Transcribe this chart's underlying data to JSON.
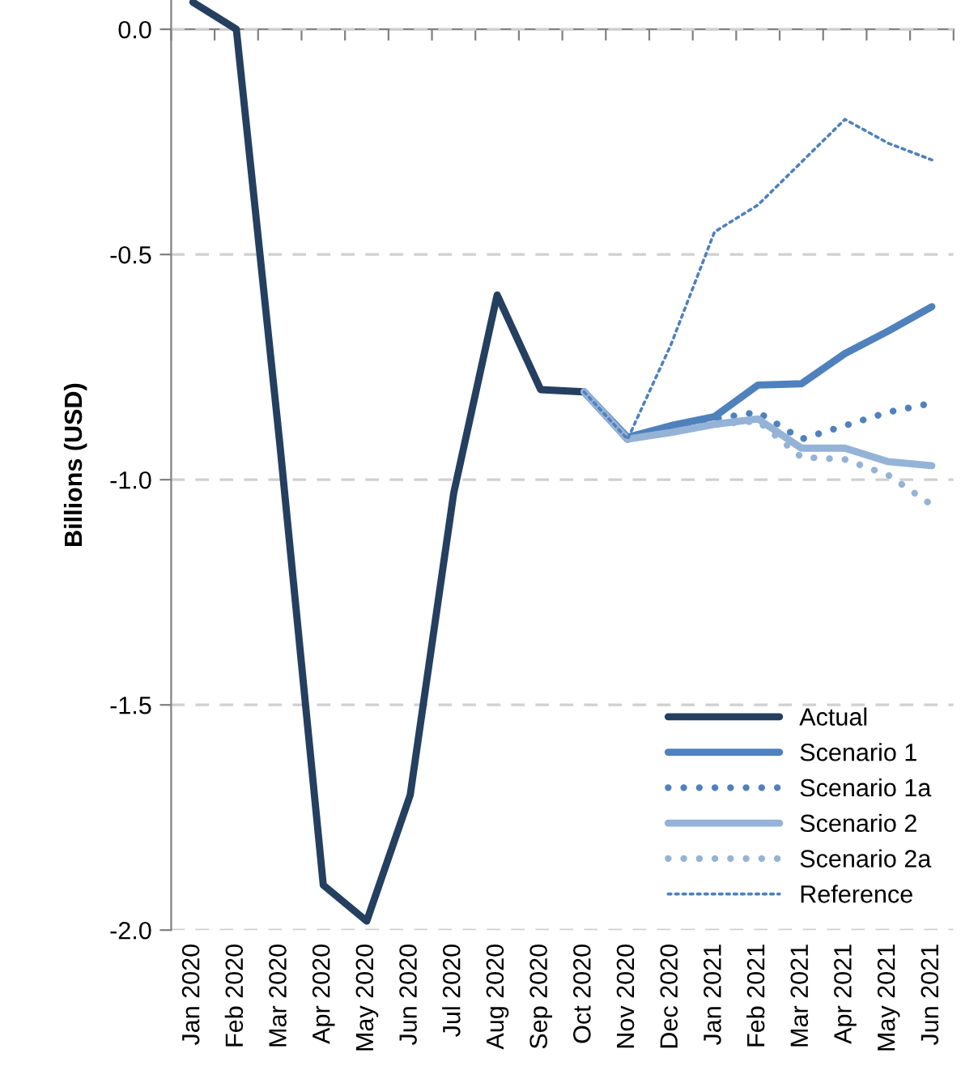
{
  "chart_data": {
    "type": "line",
    "ylabel": "Billions (USD)",
    "categories": [
      "Jan 2020",
      "Feb 2020",
      "Mar 2020",
      "Apr 2020",
      "May 2020",
      "Jun 2020",
      "Jul 2020",
      "Aug 2020",
      "Sep 2020",
      "Oct 2020",
      "Nov 2020",
      "Dec 2020",
      "Jan 2021",
      "Feb 2021",
      "Mar 2021",
      "Apr 2021",
      "May 2021",
      "Jun 2021"
    ],
    "series": [
      {
        "name": "Actual",
        "color": "#243f60",
        "line_style": "solid",
        "values": [
          0.06,
          0.0,
          -0.92,
          -1.9,
          -1.98,
          -1.7,
          -1.03,
          -0.59,
          -0.8,
          -0.805,
          -0.91,
          null,
          null,
          null,
          null,
          null,
          null,
          null
        ]
      },
      {
        "name": "Scenario 1",
        "color": "#4f81bd",
        "line_style": "solid",
        "values": [
          null,
          null,
          null,
          null,
          null,
          null,
          null,
          null,
          null,
          -0.805,
          -0.906,
          -0.88,
          -0.86,
          -0.79,
          -0.787,
          -0.72,
          -0.67,
          -0.616
        ]
      },
      {
        "name": "Scenario 1a",
        "color": "#4f81bd",
        "line_style": "dotted",
        "values": [
          null,
          null,
          null,
          null,
          null,
          null,
          null,
          null,
          null,
          -0.805,
          -0.906,
          -0.89,
          -0.865,
          -0.85,
          -0.91,
          -0.88,
          -0.85,
          -0.83
        ]
      },
      {
        "name": "Scenario 2",
        "color": "#95b3d7",
        "line_style": "solid",
        "values": [
          null,
          null,
          null,
          null,
          null,
          null,
          null,
          null,
          null,
          -0.805,
          -0.91,
          -0.895,
          -0.877,
          -0.865,
          -0.93,
          -0.93,
          -0.96,
          -0.969
        ]
      },
      {
        "name": "Scenario 2a",
        "color": "#95b3d7",
        "line_style": "dotted",
        "values": [
          null,
          null,
          null,
          null,
          null,
          null,
          null,
          null,
          null,
          -0.805,
          -0.91,
          -0.895,
          -0.877,
          -0.87,
          -0.95,
          -0.955,
          -0.99,
          -1.056
        ]
      },
      {
        "name": "Reference",
        "color": "#4f81bd",
        "line_style": "dotted",
        "values": [
          null,
          null,
          null,
          null,
          null,
          null,
          null,
          null,
          null,
          -0.805,
          -0.91,
          -0.7,
          -0.45,
          -0.39,
          -0.295,
          -0.2,
          -0.253,
          -0.29
        ]
      }
    ],
    "ylim": [
      -2.0,
      0.065
    ],
    "yticks": [
      {
        "value": 0,
        "label": "0.0"
      },
      -0.5,
      {
        "value": -1,
        "label": "-1.0"
      },
      -1.5,
      {
        "value": -2,
        "label": "-2.0"
      }
    ],
    "grid": "y",
    "legend": "bottom right"
  }
}
